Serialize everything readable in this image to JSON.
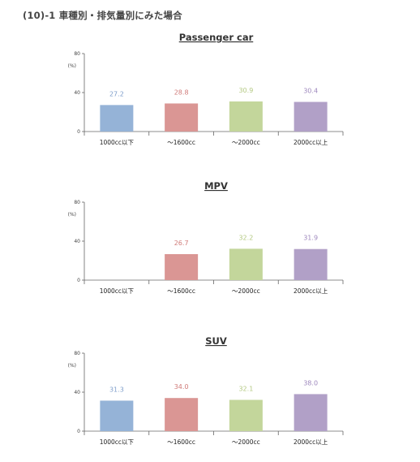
{
  "page": {
    "heading": "(10)-1 車種別・排気量別にみた場合"
  },
  "chart_data": [
    {
      "type": "bar",
      "title": "Passenger car",
      "ylabel": "(%)",
      "ylim": [
        0,
        80
      ],
      "yticks": [
        "80",
        "40",
        "0"
      ],
      "categories": [
        "1000cc以下",
        "～1600cc",
        "～2000cc",
        "2000cc以上"
      ],
      "values": [
        27.2,
        28.8,
        30.9,
        30.4
      ],
      "value_labels": [
        "27.2",
        "28.8",
        "30.9",
        "30.4"
      ]
    },
    {
      "type": "bar",
      "title": "MPV",
      "ylabel": "(%)",
      "ylim": [
        0,
        80
      ],
      "yticks": [
        "80",
        "40",
        "0"
      ],
      "categories": [
        "1000cc以下",
        "～1600cc",
        "～2000cc",
        "2000cc以上"
      ],
      "values": [
        null,
        26.7,
        32.2,
        31.9
      ],
      "value_labels": [
        "",
        "26.7",
        "32.2",
        "31.9"
      ]
    },
    {
      "type": "bar",
      "title": "SUV",
      "ylabel": "(%)",
      "ylim": [
        0,
        80
      ],
      "yticks": [
        "80",
        "40",
        "0"
      ],
      "categories": [
        "1000cc以下",
        "～1600cc",
        "～2000cc",
        "2000cc以上"
      ],
      "values": [
        31.3,
        34.0,
        32.1,
        38.0
      ],
      "value_labels": [
        "31.3",
        "34.0",
        "32.1",
        "38.0"
      ]
    }
  ],
  "colors": {
    "bars": [
      "#95b3d7",
      "#da9694",
      "#c3d69b",
      "#b1a0c7"
    ],
    "labels": [
      "#7f9fcb",
      "#d07b79",
      "#b4c983",
      "#9e88bd"
    ]
  }
}
